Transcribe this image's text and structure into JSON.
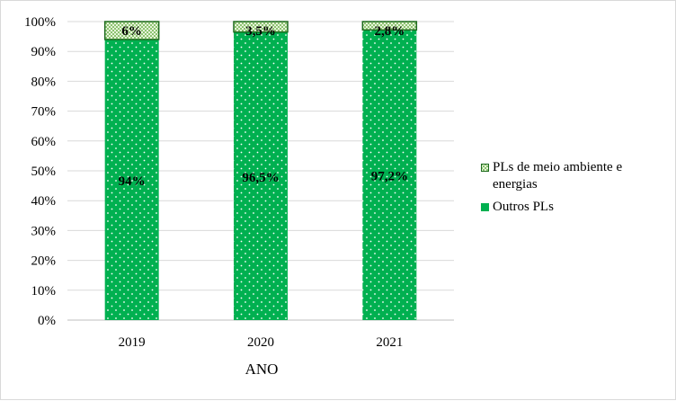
{
  "chart_data": {
    "type": "bar",
    "stacked": true,
    "percent": true,
    "categories": [
      "2019",
      "2020",
      "2021"
    ],
    "xlabel": "ANO",
    "ylabel": "",
    "ylim": [
      0,
      100
    ],
    "yticks": [
      "0%",
      "10%",
      "20%",
      "30%",
      "40%",
      "50%",
      "60%",
      "70%",
      "80%",
      "90%",
      "100%"
    ],
    "grid": true,
    "legend_position": "right",
    "series": [
      {
        "name": "Outros PLs",
        "values": [
          94,
          96.5,
          97.2
        ],
        "labels": [
          "94%",
          "96,5%",
          "97,2%"
        ],
        "color": "#00b050",
        "pattern": "dots"
      },
      {
        "name": "PLs de meio ambiente e energias",
        "values": [
          6,
          3.5,
          2.8
        ],
        "labels": [
          "6%",
          "3,5%",
          "2,8%"
        ],
        "color": "#d8eec8",
        "pattern": "checker"
      }
    ],
    "legend": [
      "PLs de meio ambiente e energias",
      "Outros PLs"
    ]
  }
}
